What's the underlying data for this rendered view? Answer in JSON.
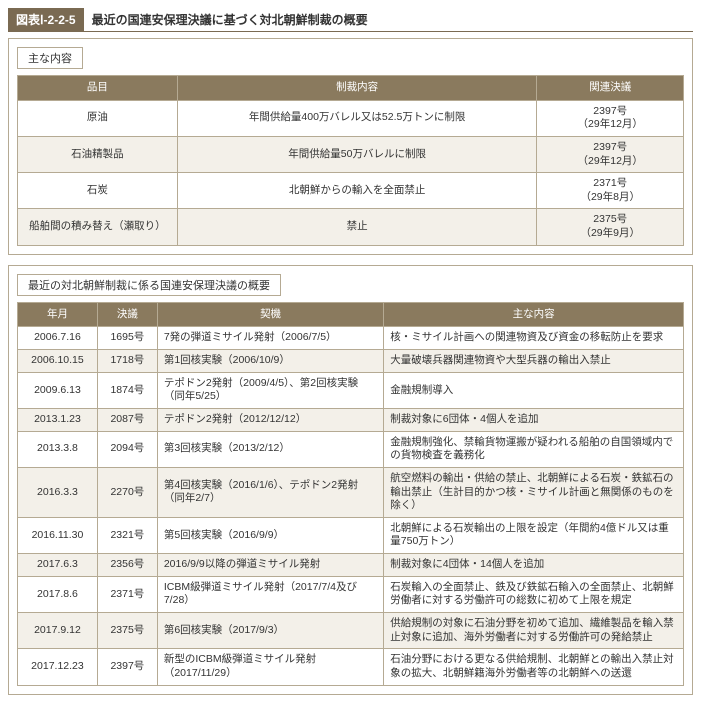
{
  "figure": {
    "tag": "図表Ⅰ-2-2-5",
    "title": "最近の国連安保理決議に基づく対北朝鮮制裁の概要"
  },
  "table1": {
    "section_label": "主な内容",
    "headers": [
      "品目",
      "制裁内容",
      "関連決議"
    ],
    "rows": [
      {
        "item": "原油",
        "content": "年間供給量400万バレル又は52.5万トンに制限",
        "res": "2397号\n（29年12月）"
      },
      {
        "item": "石油精製品",
        "content": "年間供給量50万バレルに制限",
        "res": "2397号\n（29年12月）"
      },
      {
        "item": "石炭",
        "content": "北朝鮮からの輸入を全面禁止",
        "res": "2371号\n（29年8月）"
      },
      {
        "item": "船舶間の積み替え（瀬取り）",
        "content": "禁止",
        "res": "2375号\n（29年9月）"
      }
    ]
  },
  "table2": {
    "section_label": "最近の対北朝鮮制裁に係る国連安保理決議の概要",
    "headers": [
      "年月",
      "決議",
      "契機",
      "主な内容"
    ],
    "rows": [
      {
        "ym": "2006.7.16",
        "res": "1695号",
        "trigger": "7発の弾道ミサイル発射（2006/7/5）",
        "content": "核・ミサイル計画への関連物資及び資金の移転防止を要求"
      },
      {
        "ym": "2006.10.15",
        "res": "1718号",
        "trigger": "第1回核実験（2006/10/9）",
        "content": "大量破壊兵器関連物資や大型兵器の輸出入禁止"
      },
      {
        "ym": "2009.6.13",
        "res": "1874号",
        "trigger": "テポドン2発射（2009/4/5）、第2回核実験（同年5/25）",
        "content": "金融規制導入"
      },
      {
        "ym": "2013.1.23",
        "res": "2087号",
        "trigger": "テポドン2発射（2012/12/12）",
        "content": "制裁対象に6団体・4個人を追加"
      },
      {
        "ym": "2013.3.8",
        "res": "2094号",
        "trigger": "第3回核実験（2013/2/12）",
        "content": "金融規制強化、禁輸貨物運搬が疑われる船舶の自国領域内での貨物検査を義務化"
      },
      {
        "ym": "2016.3.3",
        "res": "2270号",
        "trigger": "第4回核実験（2016/1/6）、テポドン2発射（同年2/7）",
        "content": "航空燃料の輸出・供給の禁止、北朝鮮による石炭・鉄鉱石の輸出禁止（生計目的かつ核・ミサイル計画と無関係のものを除く）"
      },
      {
        "ym": "2016.11.30",
        "res": "2321号",
        "trigger": "第5回核実験（2016/9/9）",
        "content": "北朝鮮による石炭輸出の上限を設定（年間約4億ドル又は重量750万トン）"
      },
      {
        "ym": "2017.6.3",
        "res": "2356号",
        "trigger": "2016/9/9以降の弾道ミサイル発射",
        "content": "制裁対象に4団体・14個人を追加"
      },
      {
        "ym": "2017.8.6",
        "res": "2371号",
        "trigger": "ICBM級弾道ミサイル発射（2017/7/4及び7/28）",
        "content": "石炭輸入の全面禁止、鉄及び鉄鉱石輸入の全面禁止、北朝鮮労働者に対する労働許可の総数に初めて上限を規定"
      },
      {
        "ym": "2017.9.12",
        "res": "2375号",
        "trigger": "第6回核実験（2017/9/3）",
        "content": "供給規制の対象に石油分野を初めて追加、繊維製品を輸入禁止対象に追加、海外労働者に対する労働許可の発給禁止"
      },
      {
        "ym": "2017.12.23",
        "res": "2397号",
        "trigger": "新型のICBM級弾道ミサイル発射（2017/11/29）",
        "content": "石油分野における更なる供給規制、北朝鮮との輸出入禁止対象の拡大、北朝鮮籍海外労働者等の北朝鮮への送還"
      }
    ]
  }
}
